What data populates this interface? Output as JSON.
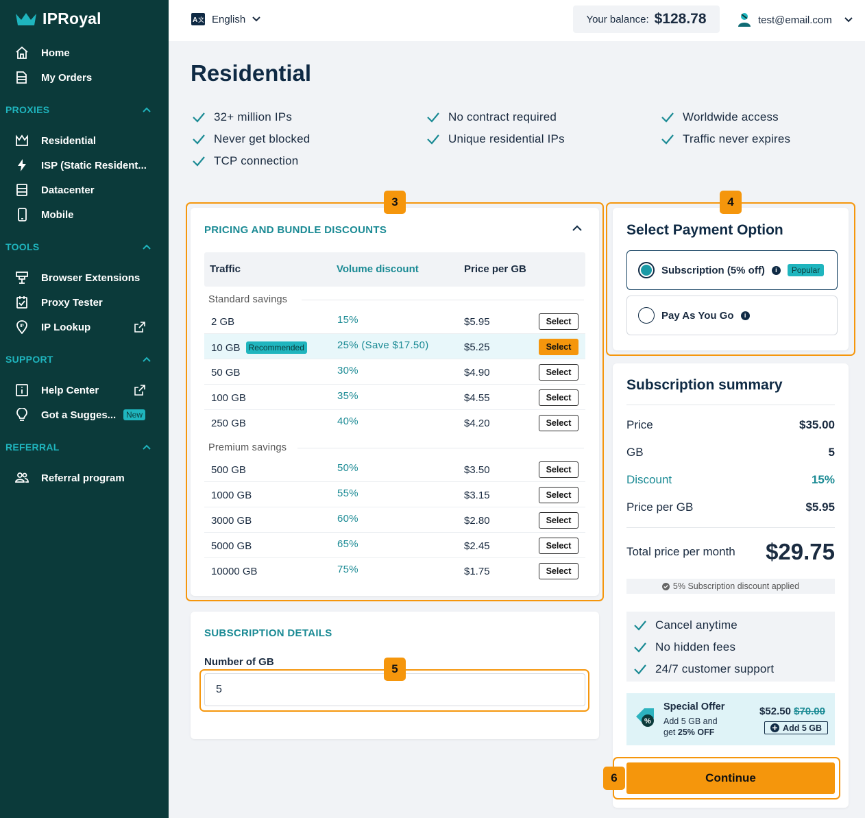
{
  "brand": {
    "name": "IPRoyal"
  },
  "sidebar": {
    "main": [
      {
        "label": "Home",
        "icon": "home-icon"
      },
      {
        "label": "My Orders",
        "icon": "orders-icon"
      }
    ],
    "sections": [
      {
        "title": "PROXIES",
        "items": [
          {
            "label": "Residential",
            "icon": "residential-icon"
          },
          {
            "label": "ISP (Static Resident...",
            "icon": "bolt-icon"
          },
          {
            "label": "Datacenter",
            "icon": "server-icon"
          },
          {
            "label": "Mobile",
            "icon": "mobile-icon"
          }
        ]
      },
      {
        "title": "TOOLS",
        "items": [
          {
            "label": "Browser Extensions",
            "icon": "extensions-icon"
          },
          {
            "label": "Proxy Tester",
            "icon": "checklist-icon"
          },
          {
            "label": "IP Lookup",
            "icon": "ip-pin-icon"
          }
        ]
      },
      {
        "title": "SUPPORT",
        "items": [
          {
            "label": "Help Center",
            "icon": "info-square-icon"
          },
          {
            "label": "Got a Sugges...",
            "icon": "lightbulb-icon",
            "badge": "New"
          }
        ]
      },
      {
        "title": "REFERRAL",
        "items": [
          {
            "label": "Referral program",
            "icon": "people-icon"
          }
        ]
      }
    ]
  },
  "header": {
    "language": "English",
    "balance_label": "Your balance:",
    "balance_value": "$128.78",
    "user_email": "test@email.com"
  },
  "page": {
    "title": "Residential",
    "features": [
      "32+ million IPs",
      "Never get blocked",
      "TCP connection",
      "No contract required",
      "Unique residential IPs",
      "Worldwide access",
      "Traffic never expires"
    ]
  },
  "annotations": [
    "3",
    "4",
    "5",
    "6"
  ],
  "pricing": {
    "title": "PRICING AND BUNDLE DISCOUNTS",
    "headers": [
      "Traffic",
      "Volume discount",
      "Price per GB"
    ],
    "standard_label": "Standard savings",
    "premium_label": "Premium savings",
    "select_label": "Select",
    "recommended_label": "Recommended",
    "standard": [
      {
        "traffic": "2 GB",
        "discount": "15%",
        "price": "$5.95"
      },
      {
        "traffic": "10 GB",
        "discount": "25% (Save $17.50)",
        "price": "$5.25",
        "recommended": true
      },
      {
        "traffic": "50 GB",
        "discount": "30%",
        "price": "$4.90"
      },
      {
        "traffic": "100 GB",
        "discount": "35%",
        "price": "$4.55"
      },
      {
        "traffic": "250 GB",
        "discount": "40%",
        "price": "$4.20"
      }
    ],
    "premium": [
      {
        "traffic": "500 GB",
        "discount": "50%",
        "price": "$3.50"
      },
      {
        "traffic": "1000 GB",
        "discount": "55%",
        "price": "$3.15"
      },
      {
        "traffic": "3000 GB",
        "discount": "60%",
        "price": "$2.80"
      },
      {
        "traffic": "5000 GB",
        "discount": "65%",
        "price": "$2.45"
      },
      {
        "traffic": "10000 GB",
        "discount": "75%",
        "price": "$1.75"
      }
    ]
  },
  "subscription_details": {
    "title": "SUBSCRIPTION DETAILS",
    "gb_label": "Number of GB",
    "gb_value": "5"
  },
  "payment": {
    "title": "Select Payment Option",
    "options": [
      {
        "label": "Subscription (5% off)",
        "badge": "Popular",
        "selected": true
      },
      {
        "label": "Pay As You Go",
        "selected": false
      }
    ]
  },
  "summary": {
    "title": "Subscription summary",
    "price_label": "Price",
    "price_value": "$35.00",
    "gb_label": "GB",
    "gb_value": "5",
    "discount_label": "Discount",
    "discount_value": "15%",
    "ppg_label": "Price per GB",
    "ppg_value": "$5.95",
    "total_label": "Total price per month",
    "total_value": "$29.75",
    "note": "5% Subscription discount applied",
    "perks": [
      "Cancel anytime",
      "No hidden fees",
      "24/7 customer support"
    ],
    "offer": {
      "title": "Special Offer",
      "line1": "Add 5 GB and",
      "line2_prefix": "get",
      "line2_bold": "25% OFF",
      "new_price": "$52.50",
      "old_price": "$70.00",
      "button": "Add 5 GB"
    },
    "continue_label": "Continue"
  },
  "colors": {
    "sidebar": "#0b3a3a",
    "accent": "#f5960c",
    "teal": "#1fb5be",
    "navy": "#0f2a44"
  }
}
